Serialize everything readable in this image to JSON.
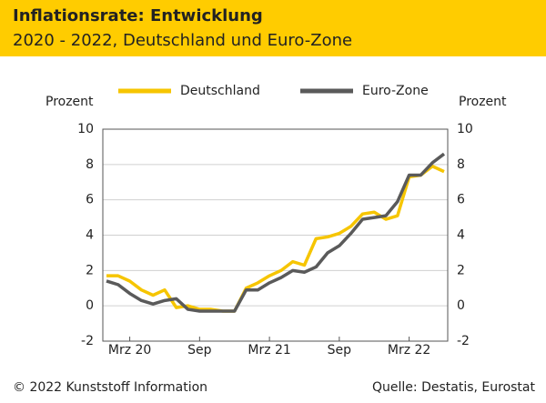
{
  "chart_data": {
    "type": "line",
    "title": "Inflationsrate: Entwicklung",
    "subtitle": "2020 - 2022, Deutschland und Euro-Zone",
    "y_label": "Prozent",
    "y2_label": "Prozent",
    "categories": [
      null,
      null,
      "Mrz 20",
      null,
      null,
      null,
      null,
      null,
      "Sep",
      null,
      null,
      null,
      null,
      null,
      "Mrz 21",
      null,
      null,
      null,
      null,
      null,
      "Sep",
      null,
      null,
      null,
      null,
      null,
      "Mrz 22",
      null,
      null,
      null
    ],
    "series": [
      {
        "name": "Deutschland",
        "color": "#f6c500",
        "values": [
          1.7,
          1.7,
          1.4,
          0.9,
          0.6,
          0.9,
          -0.1,
          0.0,
          -0.2,
          -0.2,
          -0.3,
          -0.3,
          1.0,
          1.3,
          1.7,
          2.0,
          2.5,
          2.3,
          3.8,
          3.9,
          4.1,
          4.5,
          5.2,
          5.3,
          4.9,
          5.1,
          7.3,
          7.4,
          7.9,
          7.6
        ]
      },
      {
        "name": "Euro-Zone",
        "color": "#5a5a5a",
        "values": [
          1.4,
          1.2,
          0.7,
          0.3,
          0.1,
          0.3,
          0.4,
          -0.2,
          -0.3,
          -0.3,
          -0.3,
          -0.3,
          0.9,
          0.9,
          1.3,
          1.6,
          2.0,
          1.9,
          2.2,
          3.0,
          3.4,
          4.1,
          4.9,
          5.0,
          5.1,
          5.9,
          7.4,
          7.4,
          8.1,
          8.6
        ]
      }
    ],
    "ylim": [
      -2,
      10
    ],
    "yticks": [
      -2,
      0,
      2,
      4,
      6,
      8,
      10
    ],
    "y2lim": [
      -2,
      10
    ],
    "y2ticks": [
      -2,
      0,
      2,
      4,
      6,
      8,
      10
    ],
    "grid": true,
    "copyright": "© 2022 Kunststoff Information",
    "source": "Quelle: Destatis, Eurostat"
  }
}
